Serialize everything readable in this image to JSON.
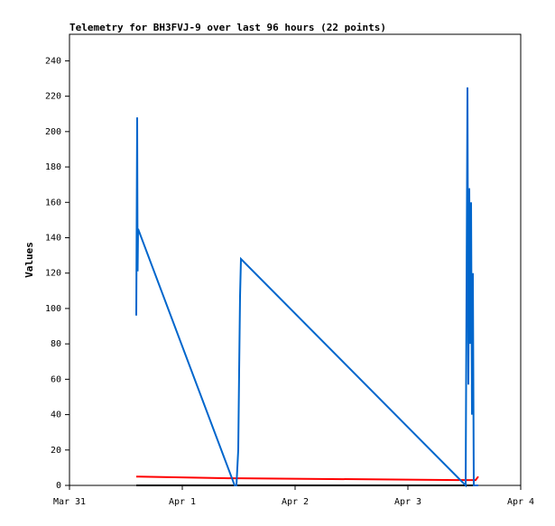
{
  "chart_data": {
    "type": "line",
    "title": "Telemetry for BH3FVJ-9 over last 96 hours (22 points)",
    "y_label": "Values",
    "x": [
      0.592,
      0.6,
      0.604,
      0.608,
      1.464,
      1.48,
      1.496,
      1.504,
      1.512,
      1.52,
      3.512,
      3.52,
      3.528,
      3.536,
      3.544,
      3.552,
      3.56,
      3.568,
      3.576,
      3.584,
      3.6,
      3.624
    ],
    "series": [
      {
        "color": "#0066cc",
        "values": [
          96,
          208,
          121,
          145,
          0,
          0,
          20,
          65,
          107,
          128,
          0,
          112,
          225,
          57,
          168,
          80,
          160,
          40,
          120,
          0,
          0,
          0
        ]
      },
      {
        "color": "#ff0000",
        "values": [
          5,
          5,
          5,
          5,
          4,
          4,
          4,
          4,
          4,
          4,
          3,
          3,
          3,
          3,
          3,
          3,
          3,
          3,
          3,
          3,
          3,
          5
        ]
      },
      {
        "color": "#000000",
        "values": [
          0,
          0,
          0,
          0,
          0,
          0,
          0,
          0,
          0,
          0,
          0,
          0,
          0,
          0,
          0,
          0,
          0,
          0,
          0,
          0,
          0,
          0
        ]
      }
    ],
    "xlim": [
      0,
      4
    ],
    "xticks": [
      {
        "value": 0,
        "label": "Mar 31"
      },
      {
        "value": 1,
        "label": "Apr 1"
      },
      {
        "value": 2,
        "label": "Apr 2"
      },
      {
        "value": 3,
        "label": "Apr 3"
      },
      {
        "value": 4,
        "label": "Apr 4"
      }
    ],
    "ylim": [
      0,
      255
    ],
    "yticks": [
      0,
      20,
      40,
      60,
      80,
      100,
      120,
      140,
      160,
      180,
      200,
      220,
      240
    ],
    "grid": false
  }
}
